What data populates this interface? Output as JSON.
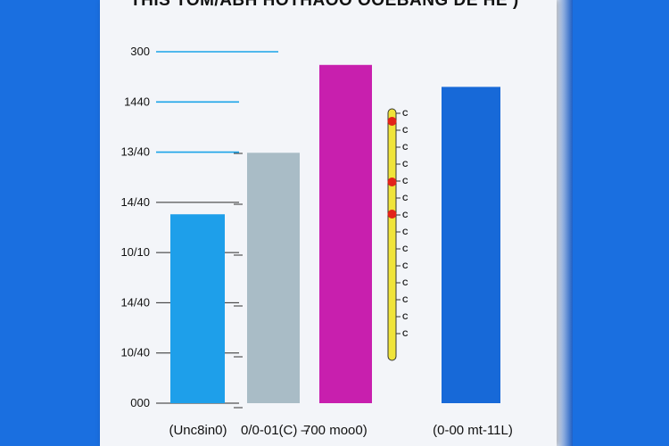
{
  "chart_data": {
    "type": "bar",
    "title": "THIS TOM/ABH HOTHAOO OOEBANG DE HE )",
    "xlabel": "",
    "ylabel": "",
    "ytick_labels": [
      "300",
      "1440",
      "13/40",
      "14/40",
      "10/10",
      "14/40",
      "10/40",
      "000"
    ],
    "categories": [
      "(Unc8in0)",
      "0/0-01(C) –",
      "700 moo0)",
      "(0-00 mt-11L)"
    ],
    "values": [
      4.3,
      5.7,
      7.7,
      7.2
    ],
    "ylim": [
      0,
      8
    ],
    "bar_colors": [
      "#1e9fea",
      "#a9bcc6",
      "#c81fae",
      "#1769d8"
    ],
    "grid": false,
    "legend": "none"
  },
  "scale_bar": {
    "labels": [
      "C",
      "C",
      "C",
      "C",
      "C",
      "C",
      "C",
      "C",
      "C",
      "C",
      "C",
      "C",
      "C",
      "C"
    ],
    "color": "#f0e43a",
    "marker_color": "#e2231a"
  }
}
